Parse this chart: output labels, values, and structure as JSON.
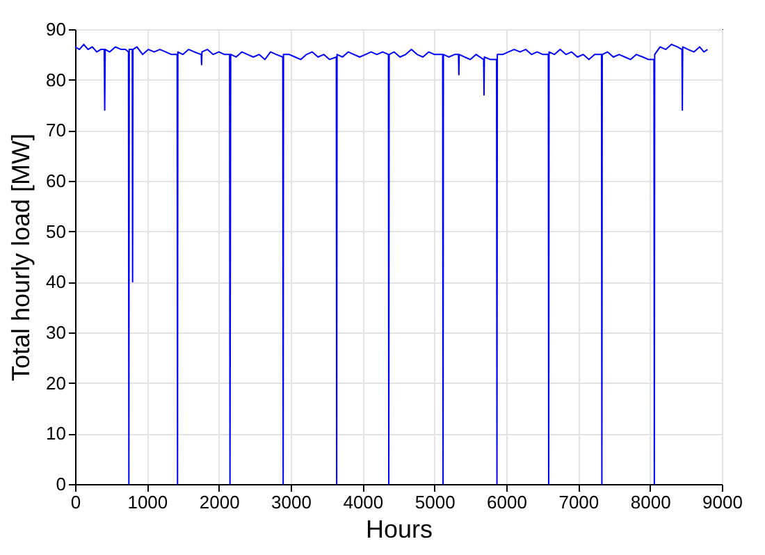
{
  "chart_data": {
    "type": "line",
    "xlabel": "Hours",
    "ylabel": "Total hourly load [MW]",
    "x": [
      0,
      60,
      120,
      180,
      240,
      300,
      360,
      405,
      412,
      419,
      480,
      560,
      640,
      700,
      743,
      748,
      753,
      795,
      800,
      805,
      860,
      940,
      1020,
      1100,
      1180,
      1260,
      1340,
      1420,
      1425,
      1430,
      1500,
      1580,
      1660,
      1755,
      1760,
      1765,
      1840,
      1920,
      2000,
      2080,
      2150,
      2155,
      2160,
      2165,
      2170,
      2240,
      2320,
      2400,
      2480,
      2560,
      2640,
      2720,
      2800,
      2890,
      2895,
      2900,
      2980,
      3060,
      3140,
      3220,
      3300,
      3380,
      3460,
      3540,
      3635,
      3640,
      3645,
      3720,
      3800,
      3880,
      3960,
      4040,
      4120,
      4200,
      4280,
      4360,
      4365,
      4370,
      4440,
      4520,
      4600,
      4680,
      4760,
      4840,
      4920,
      5000,
      5115,
      5120,
      5125,
      5200,
      5280,
      5335,
      5340,
      5345,
      5420,
      5500,
      5580,
      5685,
      5690,
      5695,
      5780,
      5865,
      5870,
      5875,
      5950,
      6030,
      6110,
      6190,
      6270,
      6350,
      6430,
      6510,
      6585,
      6590,
      6595,
      6670,
      6750,
      6830,
      6910,
      6990,
      7070,
      7150,
      7230,
      7325,
      7330,
      7335,
      7410,
      7490,
      7570,
      7650,
      7730,
      7810,
      7900,
      7980,
      8055,
      8060,
      8065,
      8140,
      8220,
      8300,
      8380,
      8445,
      8450,
      8455,
      8530,
      8610,
      8690,
      8750,
      8800
    ],
    "values": [
      86.5,
      86,
      87,
      86,
      86.5,
      85.5,
      86,
      86,
      74,
      86,
      85.5,
      86.5,
      86,
      86,
      85.5,
      0,
      86,
      86,
      40,
      86,
      86.5,
      85,
      86,
      85.5,
      86,
      85.5,
      85,
      85,
      0,
      85.5,
      85,
      86,
      85.5,
      85,
      83,
      85.5,
      86,
      85,
      85.5,
      85,
      85,
      0,
      43,
      85,
      85,
      84.5,
      85.5,
      85,
      84.5,
      85,
      84,
      85.5,
      85,
      84.5,
      0,
      85,
      85,
      84.5,
      84,
      85,
      85.5,
      84.5,
      85,
      84,
      84.5,
      0,
      85,
      84.5,
      85.5,
      85,
      84.5,
      85,
      85.5,
      85,
      85.5,
      85,
      0,
      85,
      85.5,
      84.5,
      85,
      86,
      85,
      84.5,
      85.5,
      85,
      85,
      0,
      85,
      84.5,
      85,
      85,
      81,
      85,
      84.5,
      84,
      85,
      84,
      77,
      84.5,
      84,
      84,
      0,
      85,
      85,
      85.5,
      86,
      85.5,
      86,
      85,
      85.5,
      85,
      85,
      0,
      85.5,
      85,
      86,
      85,
      85.5,
      84.5,
      85,
      84,
      85,
      85,
      0,
      85,
      85.5,
      84.5,
      85,
      84.5,
      84,
      85,
      84.5,
      84,
      84,
      0,
      85,
      86.5,
      86,
      87,
      86.5,
      86,
      74,
      86.5,
      86,
      85.5,
      86.5,
      85.5,
      86
    ],
    "color": "#0000ff",
    "xlim": [
      0,
      9000
    ],
    "xticks": [
      0,
      1000,
      2000,
      3000,
      4000,
      5000,
      6000,
      7000,
      8000,
      9000
    ],
    "ylim": [
      0,
      90
    ],
    "yticks": [
      0,
      10,
      20,
      30,
      40,
      50,
      60,
      70,
      80,
      90
    ],
    "grid": true,
    "marker": "none",
    "line_style": "solid"
  }
}
